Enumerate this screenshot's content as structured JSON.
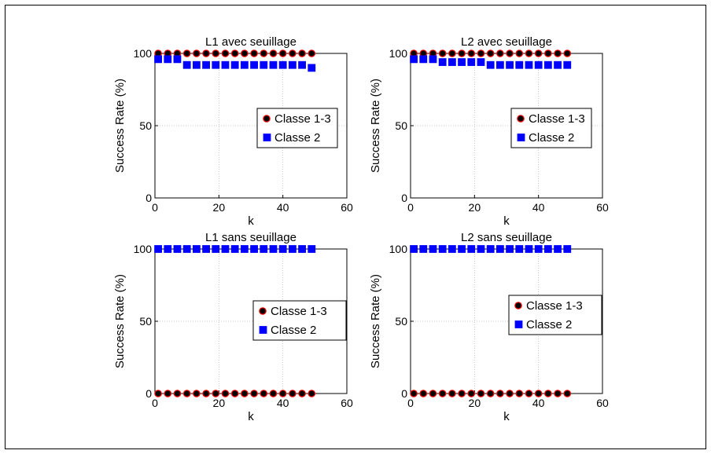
{
  "chart_data": [
    {
      "type": "scatter",
      "title": "L1 avec seuillage",
      "xlabel": "k",
      "ylabel": "Success Rate (%)",
      "xlim": [
        0,
        60
      ],
      "ylim": [
        0,
        100
      ],
      "xticks": [
        0,
        20,
        40,
        60
      ],
      "yticks": [
        0,
        50,
        100
      ],
      "grid": true,
      "legend_position": "right-middle",
      "x": [
        1,
        4,
        7,
        10,
        13,
        16,
        19,
        22,
        25,
        28,
        31,
        34,
        37,
        40,
        43,
        46,
        49
      ],
      "series": [
        {
          "name": "Classe 1-3",
          "marker": "circle",
          "color": "#000000",
          "edge": "#ff0000",
          "values": [
            100,
            100,
            100,
            100,
            100,
            100,
            100,
            100,
            100,
            100,
            100,
            100,
            100,
            100,
            100,
            100,
            100
          ]
        },
        {
          "name": "Classe 2",
          "marker": "square",
          "color": "#0000ff",
          "edge": "#0000ff",
          "values": [
            96,
            96,
            96,
            92,
            92,
            92,
            92,
            92,
            92,
            92,
            92,
            92,
            92,
            92,
            92,
            92,
            90
          ]
        }
      ]
    },
    {
      "type": "scatter",
      "title": "L2 avec seuillage",
      "xlabel": "k",
      "ylabel": "Success Rate (%)",
      "xlim": [
        0,
        60
      ],
      "ylim": [
        0,
        100
      ],
      "xticks": [
        0,
        20,
        40,
        60
      ],
      "yticks": [
        0,
        50,
        100
      ],
      "grid": true,
      "legend_position": "right-middle",
      "x": [
        1,
        4,
        7,
        10,
        13,
        16,
        19,
        22,
        25,
        28,
        31,
        34,
        37,
        40,
        43,
        46,
        49
      ],
      "series": [
        {
          "name": "Classe 1-3",
          "marker": "circle",
          "color": "#000000",
          "edge": "#ff0000",
          "values": [
            100,
            100,
            100,
            100,
            100,
            100,
            100,
            100,
            100,
            100,
            100,
            100,
            100,
            100,
            100,
            100,
            100
          ]
        },
        {
          "name": "Classe 2",
          "marker": "square",
          "color": "#0000ff",
          "edge": "#0000ff",
          "values": [
            96,
            96,
            96,
            94,
            94,
            94,
            94,
            94,
            92,
            92,
            92,
            92,
            92,
            92,
            92,
            92,
            92
          ]
        }
      ]
    },
    {
      "type": "scatter",
      "title": "L1 sans seuillage",
      "xlabel": "k",
      "ylabel": "Success Rate (%)",
      "xlim": [
        0,
        60
      ],
      "ylim": [
        0,
        100
      ],
      "xticks": [
        0,
        20,
        40,
        60
      ],
      "yticks": [
        0,
        50,
        100
      ],
      "grid": true,
      "legend_position": "right-middle",
      "x": [
        1,
        4,
        7,
        10,
        13,
        16,
        19,
        22,
        25,
        28,
        31,
        34,
        37,
        40,
        43,
        46,
        49
      ],
      "series": [
        {
          "name": "Classe 1-3",
          "marker": "circle",
          "color": "#000000",
          "edge": "#ff0000",
          "values": [
            0,
            0,
            0,
            0,
            0,
            0,
            0,
            0,
            0,
            0,
            0,
            0,
            0,
            0,
            0,
            0,
            0
          ]
        },
        {
          "name": "Classe 2",
          "marker": "square",
          "color": "#0000ff",
          "edge": "#0000ff",
          "values": [
            100,
            100,
            100,
            100,
            100,
            100,
            100,
            100,
            100,
            100,
            100,
            100,
            100,
            100,
            100,
            100,
            100
          ]
        }
      ]
    },
    {
      "type": "scatter",
      "title": "L2 sans seuillage",
      "xlabel": "k",
      "ylabel": "Success Rate (%)",
      "xlim": [
        0,
        60
      ],
      "ylim": [
        0,
        100
      ],
      "xticks": [
        0,
        20,
        40,
        60
      ],
      "yticks": [
        0,
        50,
        100
      ],
      "grid": true,
      "legend_position": "right-middle",
      "x": [
        1,
        4,
        7,
        10,
        13,
        16,
        19,
        22,
        25,
        28,
        31,
        34,
        37,
        40,
        43,
        46,
        49
      ],
      "series": [
        {
          "name": "Classe 1-3",
          "marker": "circle",
          "color": "#000000",
          "edge": "#ff0000",
          "values": [
            0,
            0,
            0,
            0,
            0,
            0,
            0,
            0,
            0,
            0,
            0,
            0,
            0,
            0,
            0,
            0,
            0
          ]
        },
        {
          "name": "Classe 2",
          "marker": "square",
          "color": "#0000ff",
          "edge": "#0000ff",
          "values": [
            100,
            100,
            100,
            100,
            100,
            100,
            100,
            100,
            100,
            100,
            100,
            100,
            100,
            100,
            100,
            100,
            100
          ]
        }
      ]
    }
  ]
}
